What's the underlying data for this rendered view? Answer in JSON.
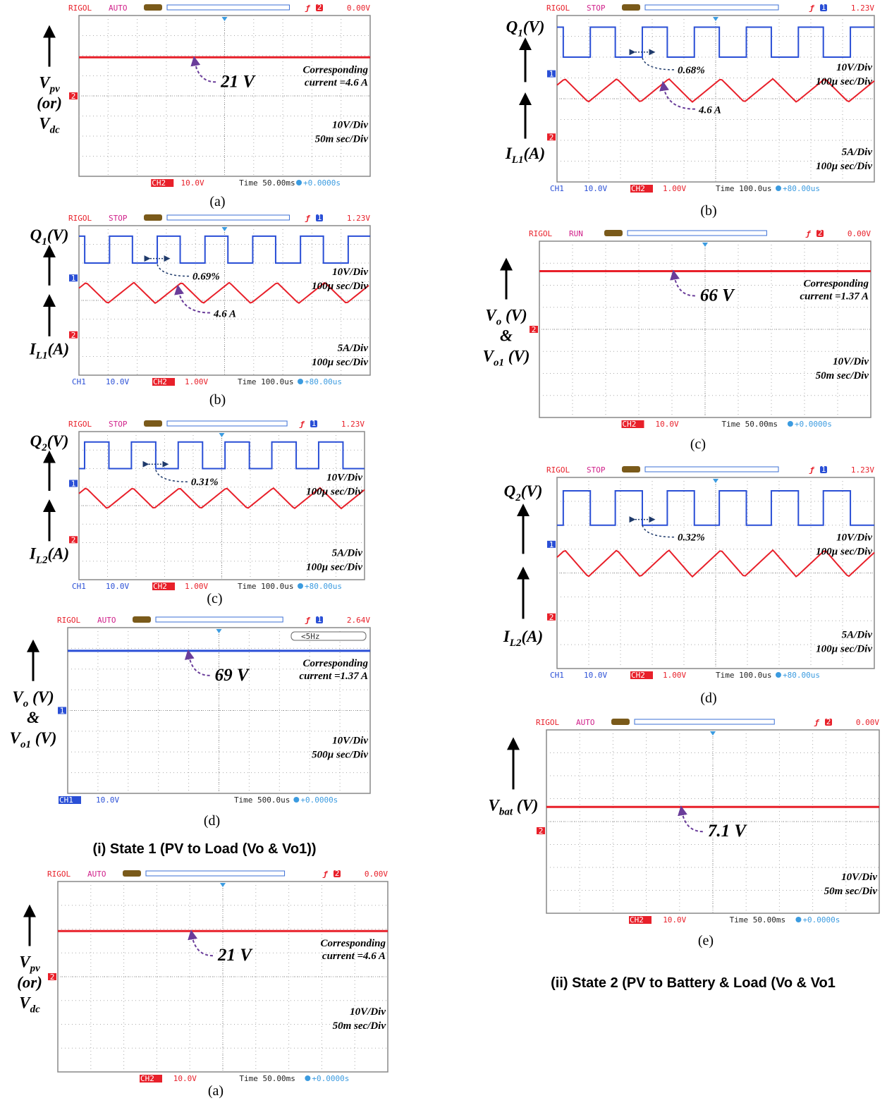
{
  "panels": [
    {
      "header": {
        "brand": "RIGOL",
        "mode": "AUTO",
        "channel": "2",
        "level": "0.00V"
      },
      "markers": [
        "2"
      ],
      "labels": [
        [
          {
            "base": "V",
            "sub": "pv"
          },
          {
            "base": "(or)"
          },
          {
            "base": "V",
            "sub": "dc"
          }
        ]
      ],
      "annotations": {
        "value": "21 V",
        "note": [
          "Corresponding",
          "current =4.6 A"
        ]
      },
      "scales": [
        [
          "10V/Div",
          "50m sec/Div"
        ]
      ],
      "footer": [
        "CH2",
        "10.0V",
        "Time 50.00ms",
        "+0.0000s"
      ],
      "caption": "(a)"
    },
    {
      "header": {
        "brand": "RIGOL",
        "mode": "STOP",
        "channel": "1",
        "level": "1.23V"
      },
      "markers": [
        "1",
        "2"
      ],
      "labels": [
        [
          {
            "base": "Q",
            "sub": "1",
            "suffix": "(V)"
          }
        ],
        [
          {
            "base": "I",
            "sub": "L1",
            "suffix": "(A)"
          }
        ]
      ],
      "annotations": {
        "duty": "0.69%",
        "current": "4.6 A"
      },
      "scales": [
        [
          "10V/Div",
          "100µ sec/Div"
        ],
        [
          "5A/Div",
          "100µ sec/Div"
        ]
      ],
      "footer": [
        "CH1",
        "10.0V",
        "CH2",
        "1.00V",
        "Time 100.0us",
        "+80.00us"
      ],
      "caption": "(b)"
    },
    {
      "header": {
        "brand": "RIGOL",
        "mode": "STOP",
        "channel": "1",
        "level": "1.23V"
      },
      "markers": [
        "1",
        "2"
      ],
      "labels": [
        [
          {
            "base": "Q",
            "sub": "2",
            "suffix": "(V)"
          }
        ],
        [
          {
            "base": "I",
            "sub": "L2",
            "suffix": "(A)"
          }
        ]
      ],
      "annotations": {
        "duty": "0.31%"
      },
      "scales": [
        [
          "10V/Div",
          "100µ sec/Div"
        ],
        [
          "5A/Div",
          "100µ sec/Div"
        ]
      ],
      "footer": [
        "CH1",
        "10.0V",
        "CH2",
        "1.00V",
        "Time 100.0us",
        "+80.00us"
      ],
      "caption": "(c)"
    },
    {
      "header": {
        "brand": "RIGOL",
        "mode": "AUTO",
        "channel": "1",
        "level": "2.64V"
      },
      "freq": "<5Hz",
      "markers": [
        "1"
      ],
      "labels": [
        [
          {
            "base": "V",
            "sub": "o",
            "suffix": " (V)"
          },
          {
            "base": "&"
          },
          {
            "base": "V",
            "sub": "o1",
            "suffix": " (V)"
          }
        ]
      ],
      "annotations": {
        "value": "69 V",
        "note": [
          "Corresponding",
          "current =1.37 A"
        ]
      },
      "scales": [
        [
          "10V/Div",
          "500µ sec/Div"
        ]
      ],
      "footer": [
        "CH1",
        "10.0V",
        "Time 500.0us",
        "+0.0000s"
      ],
      "caption": "(d)"
    },
    {
      "header": {
        "brand": "RIGOL",
        "mode": "AUTO",
        "channel": "2",
        "level": "0.00V"
      },
      "markers": [
        "2"
      ],
      "labels": [
        [
          {
            "base": "V",
            "sub": "pv"
          },
          {
            "base": "(or)"
          },
          {
            "base": "V",
            "sub": "dc"
          }
        ]
      ],
      "annotations": {
        "value": "21 V",
        "note": [
          "Corresponding",
          "current =4.6 A"
        ]
      },
      "scales": [
        [
          "10V/Div",
          "50m sec/Div"
        ]
      ],
      "footer": [
        "CH2",
        "10.0V",
        "Time 50.00ms",
        "+0.0000s"
      ],
      "caption": "(a)"
    },
    {
      "header": {
        "brand": "RIGOL",
        "mode": "STOP",
        "channel": "1",
        "level": "1.23V"
      },
      "markers": [
        "1",
        "2"
      ],
      "labels": [
        [
          {
            "base": "Q",
            "sub": "1",
            "suffix": "(V)"
          }
        ],
        [
          {
            "base": "I",
            "sub": "L1",
            "suffix": "(A)"
          }
        ]
      ],
      "annotations": {
        "duty": "0.68%",
        "current": "4.6 A"
      },
      "scales": [
        [
          "10V/Div",
          "100µ sec/Div"
        ],
        [
          "5A/Div",
          "100µ sec/Div"
        ]
      ],
      "footer": [
        "CH1",
        "10.0V",
        "CH2",
        "1.00V",
        "Time 100.0us",
        "+80.00us"
      ],
      "caption": "(b)"
    },
    {
      "header": {
        "brand": "RIGOL",
        "mode": "RUN",
        "channel": "2",
        "level": "0.00V"
      },
      "markers": [
        "2"
      ],
      "labels": [
        [
          {
            "base": "V",
            "sub": "o",
            "suffix": " (V)"
          },
          {
            "base": "&"
          },
          {
            "base": "V",
            "sub": "o1",
            "suffix": " (V)"
          }
        ]
      ],
      "annotations": {
        "value": "66 V",
        "note": [
          "Corresponding",
          "current =1.37 A"
        ]
      },
      "scales": [
        [
          "10V/Div",
          "50m sec/Div"
        ]
      ],
      "footer": [
        "CH2",
        "10.0V",
        "Time 50.00ms",
        "+0.0000s"
      ],
      "caption": "(c)"
    },
    {
      "header": {
        "brand": "RIGOL",
        "mode": "STOP",
        "channel": "1",
        "level": "1.23V"
      },
      "markers": [
        "1",
        "2"
      ],
      "labels": [
        [
          {
            "base": "Q",
            "sub": "2",
            "suffix": "(V)"
          }
        ],
        [
          {
            "base": "I",
            "sub": "L2",
            "suffix": "(A)"
          }
        ]
      ],
      "annotations": {
        "duty": "0.32%"
      },
      "scales": [
        [
          "10V/Div",
          "100µ sec/Div"
        ],
        [
          "5A/Div",
          "100µ sec/Div"
        ]
      ],
      "footer": [
        "CH1",
        "10.0V",
        "CH2",
        "1.00V",
        "Time 100.0us",
        "+80.00us"
      ],
      "caption": "(d)"
    },
    {
      "header": {
        "brand": "RIGOL",
        "mode": "AUTO",
        "channel": "2",
        "level": "0.00V"
      },
      "markers": [
        "2"
      ],
      "labels": [
        [
          {
            "base": "V",
            "sub": "bat",
            "suffix": " (V)"
          }
        ]
      ],
      "annotations": {
        "value": "7.1 V"
      },
      "scales": [
        [
          "10V/Div",
          "50m sec/Div"
        ]
      ],
      "footer": [
        "CH2",
        "10.0V",
        "Time 50.00ms",
        "+0.0000s"
      ],
      "caption": "(e)"
    }
  ],
  "sections": [
    "(i) State 1 (PV to Load (Vo & Vo1))",
    "(ii) State 2 (PV to Battery & Load (Vo & Vo1"
  ]
}
